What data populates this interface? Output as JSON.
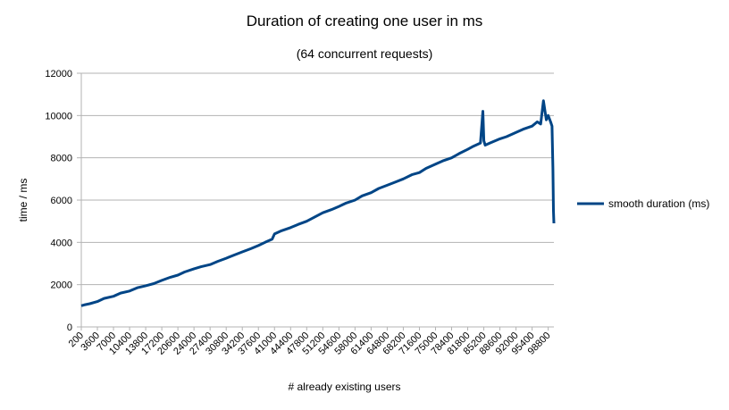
{
  "chart_data": {
    "type": "line",
    "title": "Duration of creating one user in ms",
    "subtitle": "(64 concurrent requests)",
    "xlabel": "# already existing users",
    "ylabel": "time / ms",
    "ylim": [
      0,
      12000
    ],
    "yticks": [
      0,
      2000,
      4000,
      6000,
      8000,
      10000,
      12000
    ],
    "xlim": [
      200,
      100000
    ],
    "xticks": [
      200,
      3600,
      7000,
      10400,
      13800,
      17200,
      20600,
      24000,
      27400,
      30800,
      34200,
      37600,
      41000,
      44400,
      47800,
      51200,
      54600,
      58000,
      61400,
      64800,
      68200,
      71600,
      75000,
      78400,
      81800,
      85200,
      88600,
      92000,
      95400,
      98800
    ],
    "grid": "horizontal",
    "legend_position": "right",
    "series": [
      {
        "name": "smooth duration (ms)",
        "color": "#004586",
        "x": [
          200,
          1000,
          2000,
          3600,
          5000,
          7000,
          8500,
          10400,
          12000,
          13800,
          15500,
          17200,
          19000,
          20600,
          22000,
          24000,
          25500,
          27400,
          29000,
          30800,
          32500,
          34200,
          36000,
          37600,
          39000,
          40500,
          41000,
          42500,
          44400,
          46000,
          47800,
          49500,
          51200,
          53000,
          54600,
          56000,
          58000,
          59500,
          61400,
          63000,
          64800,
          66500,
          68200,
          70000,
          71600,
          73000,
          75000,
          76500,
          78400,
          80000,
          81800,
          83000,
          84500,
          85000,
          85200,
          85500,
          86500,
          88600,
          90000,
          92000,
          93500,
          95400,
          96500,
          97200,
          97800,
          98400,
          98800,
          99300,
          99600,
          99800,
          99900,
          100000
        ],
        "y": [
          1000,
          1050,
          1100,
          1200,
          1350,
          1450,
          1600,
          1700,
          1850,
          1950,
          2050,
          2200,
          2350,
          2450,
          2600,
          2750,
          2850,
          2950,
          3100,
          3250,
          3400,
          3550,
          3700,
          3850,
          4000,
          4150,
          4400,
          4550,
          4700,
          4850,
          5000,
          5200,
          5400,
          5550,
          5700,
          5850,
          6000,
          6200,
          6350,
          6550,
          6700,
          6850,
          7000,
          7200,
          7300,
          7500,
          7700,
          7850,
          8000,
          8200,
          8400,
          8550,
          8700,
          10200,
          8800,
          8600,
          8700,
          8900,
          9000,
          9200,
          9350,
          9500,
          9700,
          9600,
          10700,
          9800,
          10000,
          9700,
          9500,
          7500,
          5500,
          4900
        ]
      }
    ]
  }
}
